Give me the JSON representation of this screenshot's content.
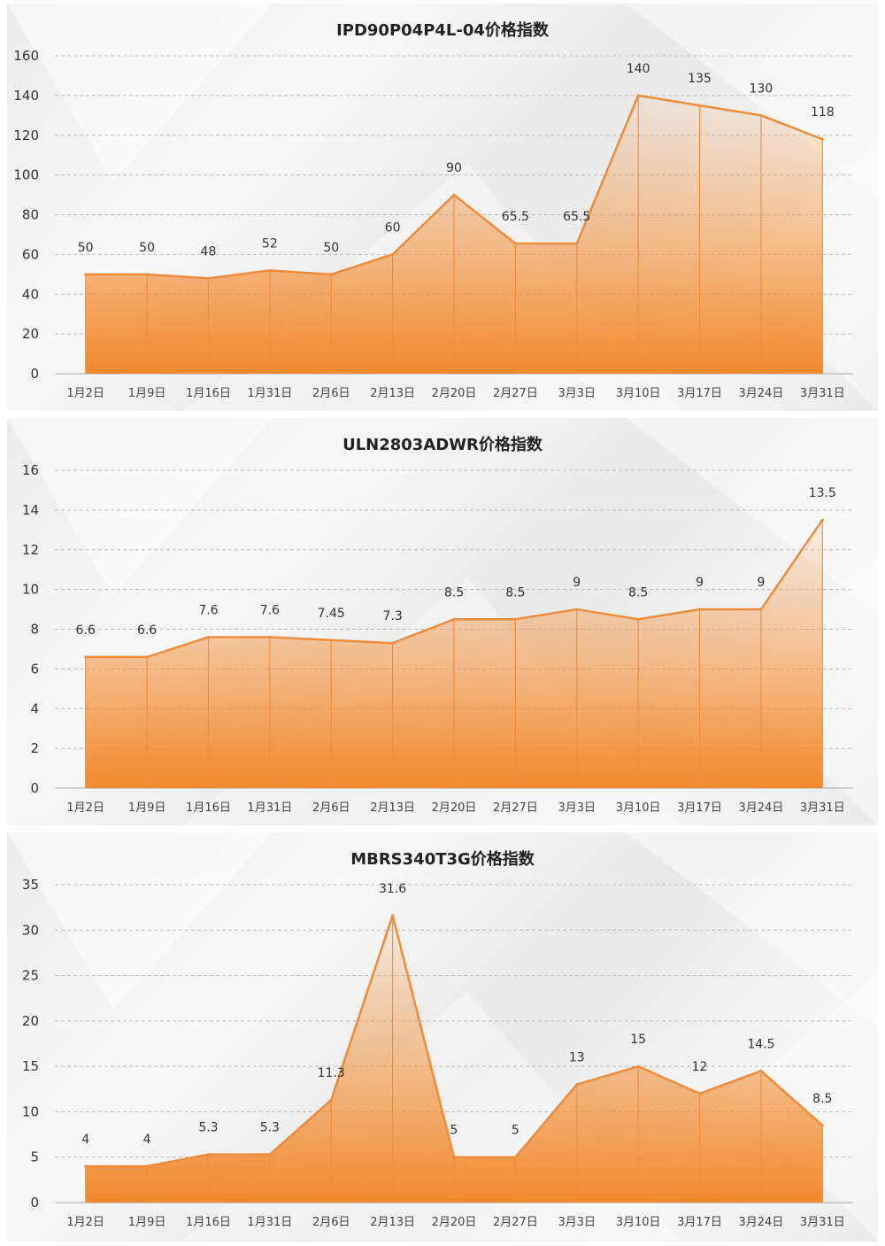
{
  "chart_data": [
    {
      "type": "area",
      "title": "IPD90P04P4L-04价格指数",
      "categories": [
        "1月2日",
        "1月9日",
        "1月16日",
        "1月31日",
        "2月6日",
        "2月13日",
        "2月20日",
        "2月27日",
        "3月3日",
        "3月10日",
        "3月17日",
        "3月24日",
        "3月31日"
      ],
      "values": [
        50,
        50,
        48,
        52,
        50,
        60,
        90,
        65.5,
        65.5,
        140,
        135,
        130,
        118
      ],
      "value_labels": [
        "50",
        "50",
        "48",
        "52",
        "50",
        "60",
        "90",
        "65.5",
        "65.5",
        "140",
        "135",
        "130",
        "118"
      ],
      "yticks": [
        "0",
        "20",
        "40",
        "60",
        "80",
        "100",
        "120",
        "140",
        "160"
      ],
      "ylim": [
        0,
        160
      ],
      "grid": true,
      "legend": "none",
      "colors": {
        "area": "#f28a2e",
        "line": "#ee8c3c",
        "grid": "#bbbbbb"
      }
    },
    {
      "type": "area",
      "title": "ULN2803ADWR价格指数",
      "categories": [
        "1月2日",
        "1月9日",
        "1月16日",
        "1月31日",
        "2月6日",
        "2月13日",
        "2月20日",
        "2月27日",
        "3月3日",
        "3月10日",
        "3月17日",
        "3月24日",
        "3月31日"
      ],
      "values": [
        6.6,
        6.6,
        7.6,
        7.6,
        7.45,
        7.3,
        8.5,
        8.5,
        9,
        8.5,
        9,
        9,
        13.5
      ],
      "value_labels": [
        "6.6",
        "6.6",
        "7.6",
        "7.6",
        "7.45",
        "7.3",
        "8.5",
        "8.5",
        "9",
        "8.5",
        "9",
        "9",
        "13.5"
      ],
      "yticks": [
        "0",
        "2",
        "4",
        "6",
        "8",
        "10",
        "12",
        "14",
        "16"
      ],
      "ylim": [
        0,
        16
      ],
      "grid": true,
      "legend": "none",
      "colors": {
        "area": "#f28a2e",
        "line": "#ee8c3c",
        "grid": "#bbbbbb"
      }
    },
    {
      "type": "area",
      "title": "MBRS340T3G价格指数",
      "categories": [
        "1月2日",
        "1月9日",
        "1月16日",
        "1月31日",
        "2月6日",
        "2月13日",
        "2月20日",
        "2月27日",
        "3月3日",
        "3月10日",
        "3月17日",
        "3月24日",
        "3月31日"
      ],
      "values": [
        4,
        4,
        5.3,
        5.3,
        11.3,
        31.6,
        5,
        5,
        13,
        15,
        12,
        14.5,
        8.5
      ],
      "value_labels": [
        "4",
        "4",
        "5.3",
        "5.3",
        "11.3",
        "31.6",
        "5",
        "5",
        "13",
        "15",
        "12",
        "14.5",
        "8.5"
      ],
      "yticks": [
        "0",
        "5",
        "10",
        "15",
        "20",
        "25",
        "30",
        "35"
      ],
      "ylim": [
        0,
        35
      ],
      "grid": true,
      "legend": "none",
      "colors": {
        "area": "#f28a2e",
        "line": "#ee8c3c",
        "grid": "#bbbbbb"
      }
    }
  ]
}
